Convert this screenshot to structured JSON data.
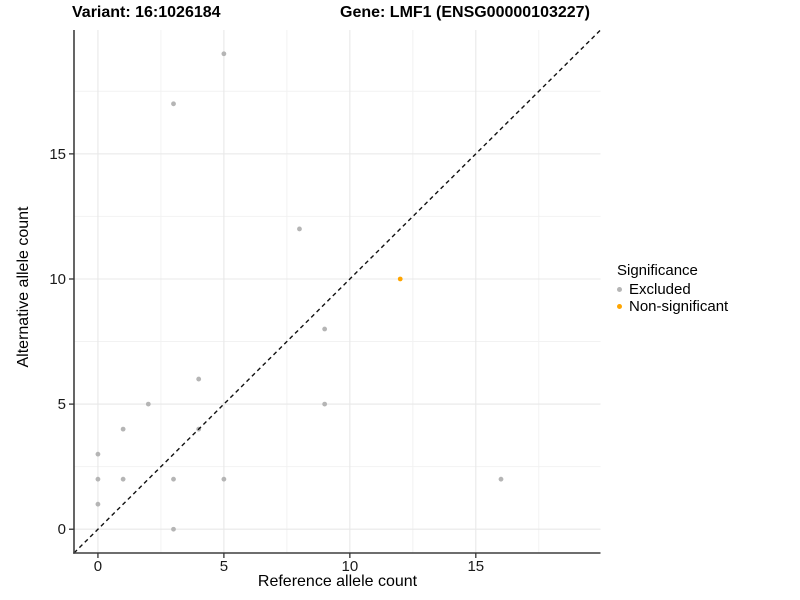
{
  "chart_data": {
    "type": "scatter",
    "titles": {
      "left": "Variant: 16:1026184",
      "right": "Gene: LMF1 (ENSG00000103227)"
    },
    "xlabel": "Reference allele count",
    "ylabel": "Alternative allele count",
    "xlim": [
      -0.95,
      19.95
    ],
    "ylim": [
      -0.95,
      19.95
    ],
    "xticks": [
      0,
      5,
      10,
      15
    ],
    "yticks": [
      0,
      5,
      10,
      15
    ],
    "minor_ticks": [
      2.5,
      7.5,
      12.5,
      17.5
    ],
    "grid": true,
    "background": "#ffffff",
    "reference_line": {
      "kind": "diagonal-y-equals-x",
      "style": "dashed",
      "color": "#111111"
    },
    "series": [
      {
        "name": "Excluded",
        "color": "#b5b5b5",
        "points": [
          [
            0,
            1
          ],
          [
            0,
            2
          ],
          [
            0,
            3
          ],
          [
            1,
            2
          ],
          [
            1,
            4
          ],
          [
            2,
            5
          ],
          [
            3,
            0
          ],
          [
            3,
            2
          ],
          [
            3,
            17
          ],
          [
            4,
            4
          ],
          [
            4,
            6
          ],
          [
            5,
            2
          ],
          [
            5,
            19
          ],
          [
            8,
            12
          ],
          [
            9,
            5
          ],
          [
            9,
            8
          ],
          [
            16,
            2
          ]
        ]
      },
      {
        "name": "Non-significant",
        "color": "#ffa500",
        "points": [
          [
            12,
            10
          ]
        ]
      }
    ],
    "legend": {
      "title": "Significance",
      "position": "right"
    }
  }
}
